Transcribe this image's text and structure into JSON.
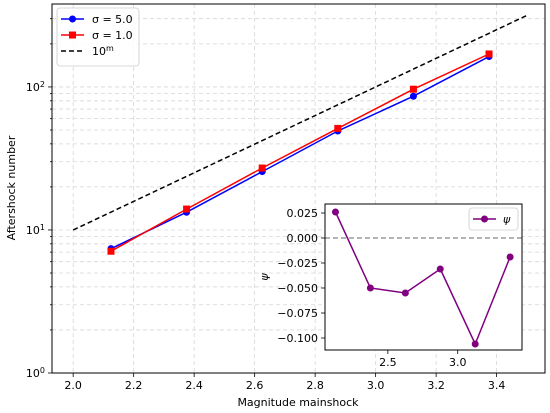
{
  "chart_data": [
    {
      "type": "line",
      "role": "main",
      "xlabel": "Magnitude mainshock",
      "ylabel": "Aftershock number",
      "x_scale": "linear",
      "y_scale": "log",
      "xlim": [
        1.93,
        3.56
      ],
      "ylim": [
        1,
        380
      ],
      "x_ticks": [
        2.0,
        2.2,
        2.4,
        2.6,
        2.8,
        3.0,
        3.2,
        3.4
      ],
      "x_tick_labels": [
        "2.0",
        "2.2",
        "2.4",
        "2.6",
        "2.8",
        "3.0",
        "3.2",
        "3.4"
      ],
      "y_ticks": [
        1,
        10,
        100
      ],
      "y_tick_labels": [
        "10^0",
        "10^1",
        "10^2"
      ],
      "grid": true,
      "legend_position": "top-left",
      "series": [
        {
          "name": "σ = 5.0",
          "color": "#0000ff",
          "marker": "circle",
          "style": "solid",
          "x": [
            2.125,
            2.375,
            2.625,
            2.875,
            3.125,
            3.375
          ],
          "y": [
            7.4,
            13.3,
            25.6,
            49.2,
            86.1,
            163
          ]
        },
        {
          "name": "σ = 1.0",
          "color": "#ff0000",
          "marker": "square",
          "style": "solid",
          "x": [
            2.125,
            2.375,
            2.625,
            2.875,
            3.125,
            3.375
          ],
          "y": [
            7.1,
            14.0,
            27.1,
            51.3,
            96.4,
            170
          ]
        },
        {
          "name": "10^m",
          "color": "#000000",
          "marker": "none",
          "style": "dashed",
          "x": [
            2.0,
            3.5
          ],
          "y": [
            10,
            316.2
          ]
        }
      ]
    },
    {
      "type": "line",
      "role": "inset",
      "xlabel": "",
      "ylabel": "ψ",
      "xlim": [
        2.05,
        3.46
      ],
      "ylim": [
        -0.112,
        0.034
      ],
      "x_ticks": [
        2.5,
        3.0
      ],
      "x_tick_labels": [
        "2.5",
        "3.0"
      ],
      "y_ticks": [
        0.025,
        0.0,
        -0.025,
        -0.05,
        -0.075,
        -0.1
      ],
      "y_tick_labels": [
        "0.025",
        "0.000",
        "−0.025",
        "−0.050",
        "−0.075",
        "−0.100"
      ],
      "reference_line": 0.0,
      "legend_position": "top-right",
      "series": [
        {
          "name": "ψ",
          "color": "#800080",
          "marker": "circle",
          "x": [
            2.125,
            2.375,
            2.625,
            2.875,
            3.125,
            3.375
          ],
          "y": [
            0.026,
            -0.05,
            -0.055,
            -0.031,
            -0.106,
            -0.019
          ]
        }
      ]
    }
  ]
}
